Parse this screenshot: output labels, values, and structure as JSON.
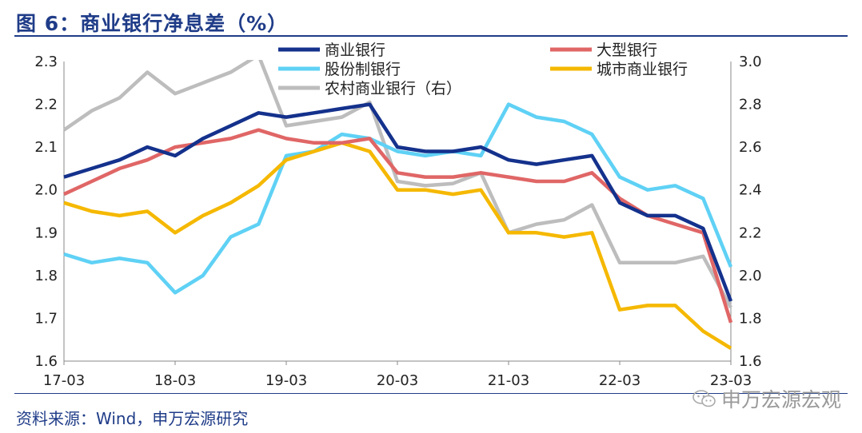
{
  "header": {
    "title": "图 6：商业银行净息差（%）"
  },
  "footer": {
    "source": "资料来源：Wind，申万宏源研究",
    "watermark": "申万宏源宏观"
  },
  "chart_data": {
    "type": "line",
    "title": "商业银行净息差（%）",
    "x": [
      "17-03",
      "17-06",
      "17-09",
      "17-12",
      "18-03",
      "18-06",
      "18-09",
      "18-12",
      "19-03",
      "19-06",
      "19-09",
      "19-12",
      "20-03",
      "20-06",
      "20-09",
      "20-12",
      "21-03",
      "21-06",
      "21-09",
      "21-12",
      "22-03",
      "22-06",
      "22-09",
      "22-12",
      "23-03"
    ],
    "xticks": [
      "17-03",
      "18-03",
      "19-03",
      "20-03",
      "21-03",
      "22-03",
      "23-03"
    ],
    "ylim_left": [
      1.6,
      2.3
    ],
    "yticks_left": [
      "1.6",
      "1.7",
      "1.8",
      "1.9",
      "2.0",
      "2.1",
      "2.2",
      "2.3"
    ],
    "ylim_right": [
      1.6,
      3.0
    ],
    "yticks_right": [
      "1.6",
      "1.8",
      "2.0",
      "2.2",
      "2.4",
      "2.6",
      "2.8",
      "3.0"
    ],
    "series": [
      {
        "name": "商业银行",
        "axis": "left",
        "color": "#14318c",
        "values": [
          2.03,
          2.05,
          2.07,
          2.1,
          2.08,
          2.12,
          2.15,
          2.18,
          2.17,
          2.18,
          2.19,
          2.2,
          2.1,
          2.09,
          2.09,
          2.1,
          2.07,
          2.06,
          2.07,
          2.08,
          1.97,
          1.94,
          1.94,
          1.91,
          1.74
        ]
      },
      {
        "name": "股份制银行",
        "axis": "left",
        "color": "#5fd1f5",
        "values": [
          1.85,
          1.83,
          1.84,
          1.83,
          1.76,
          1.8,
          1.89,
          1.92,
          2.08,
          2.09,
          2.13,
          2.12,
          2.09,
          2.08,
          2.09,
          2.08,
          2.2,
          2.17,
          2.16,
          2.13,
          2.03,
          2.0,
          2.01,
          1.98,
          1.82
        ]
      },
      {
        "name": "大型银行",
        "axis": "left",
        "color": "#e06666",
        "values": [
          1.99,
          2.02,
          2.05,
          2.07,
          2.1,
          2.11,
          2.12,
          2.14,
          2.12,
          2.11,
          2.11,
          2.12,
          2.04,
          2.03,
          2.03,
          2.04,
          2.03,
          2.02,
          2.02,
          2.04,
          1.98,
          1.94,
          1.92,
          1.9,
          1.69
        ]
      },
      {
        "name": "城市商业银行",
        "axis": "left",
        "color": "#f5b800",
        "values": [
          1.97,
          1.95,
          1.94,
          1.95,
          1.9,
          1.94,
          1.97,
          2.01,
          2.07,
          2.09,
          2.11,
          2.09,
          2.0,
          2.0,
          1.99,
          2.0,
          1.9,
          1.9,
          1.89,
          1.9,
          1.72,
          1.73,
          1.73,
          1.67,
          1.63
        ]
      },
      {
        "name": "农村商业银行（右）",
        "axis": "right",
        "color": "#bdbdbd",
        "values": [
          2.68,
          2.77,
          2.83,
          2.95,
          2.85,
          2.9,
          2.95,
          3.03,
          2.7,
          2.72,
          2.74,
          2.81,
          2.44,
          2.42,
          2.43,
          2.48,
          2.2,
          2.24,
          2.26,
          2.33,
          2.06,
          2.06,
          2.06,
          2.09,
          1.85
        ]
      }
    ]
  }
}
